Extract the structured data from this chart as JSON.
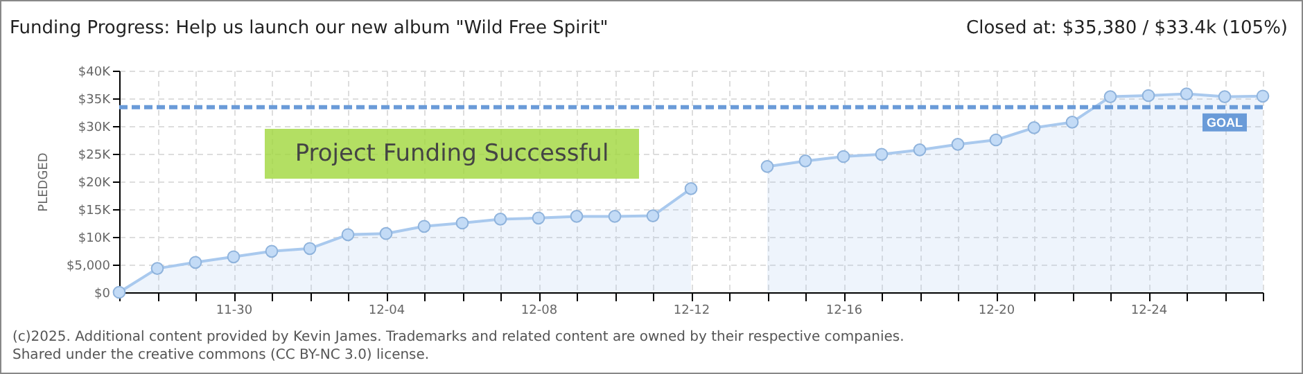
{
  "chart_data": {
    "type": "area",
    "title": "Funding Progress: Help us launch our new album \"Wild Free Spirit\"",
    "subtitle": "Closed at:  $35,380 /  $33.4k (105%)",
    "ylabel": "PLEDGED",
    "categories": [
      null,
      null,
      null,
      "11-30",
      null,
      null,
      null,
      "12-04",
      null,
      null,
      null,
      "12-08",
      null,
      null,
      null,
      "12-12",
      null,
      null,
      null,
      "12-16",
      null,
      null,
      null,
      "12-20",
      null,
      null,
      null,
      "12-24",
      null,
      null,
      null
    ],
    "series": [
      {
        "color": "#a9c9ee",
        "values": [
          0,
          4300,
          5400,
          6400,
          7400,
          7900,
          10400,
          10600,
          11900,
          12500,
          13200,
          13400,
          13700,
          13700,
          13800,
          18700,
          null,
          22700,
          23700,
          24500,
          24900,
          25700,
          26700,
          27500,
          29700,
          30700,
          35300,
          35500,
          35800,
          35300,
          35400
        ]
      }
    ],
    "ylim": [
      0,
      40000
    ],
    "yticks": [
      {
        "value": 0,
        "label": "$0"
      },
      {
        "value": 5000,
        "label": "$5,000"
      },
      {
        "value": 10000,
        "label": "$10K"
      },
      {
        "value": 15000,
        "label": "$15K"
      },
      {
        "value": 20000,
        "label": "$20K"
      },
      {
        "value": 25000,
        "label": "$25K"
      },
      {
        "value": 30000,
        "label": "$30K"
      },
      {
        "value": 35000,
        "label": "$35K"
      },
      {
        "value": 40000,
        "label": "$40K"
      }
    ],
    "ref_lines": [
      {
        "axis": "y",
        "value": 33400,
        "label": "GOAL",
        "color": "#6a9bd8",
        "line_style": "dashed"
      }
    ],
    "grid": true,
    "marker": "circle",
    "annotations": [
      "Project Funding Successful",
      "(c)2025. Additional content provided by Kevin James. Trademarks and related content are owned by their respective companies.",
      "Shared under the creative commons (CC BY-NC 3.0) license."
    ]
  }
}
